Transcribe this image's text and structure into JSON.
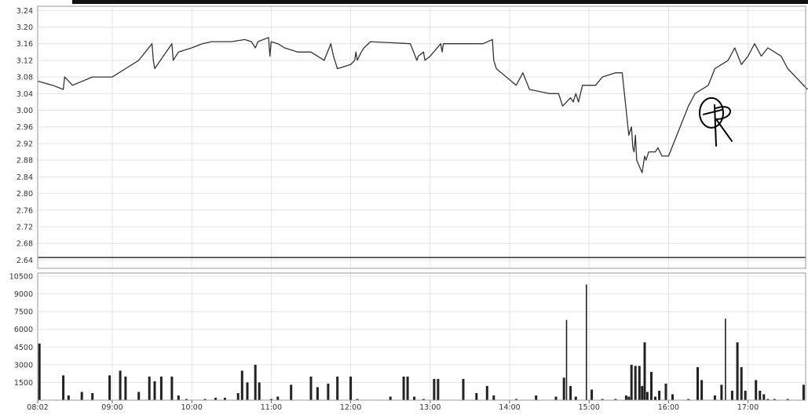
{
  "chart_data": [
    {
      "type": "line",
      "panel": "price",
      "y_ticks": [
        3.24,
        3.2,
        3.16,
        3.12,
        3.08,
        3.04,
        3.0,
        2.96,
        2.92,
        2.88,
        2.84,
        2.8,
        2.76,
        2.72,
        2.68,
        2.64
      ],
      "ylim": [
        2.62,
        3.25
      ],
      "grid": true,
      "reference_line": 2.646,
      "series": [
        {
          "x": [
            "08:02",
            "08:15",
            "08:23",
            "08:24",
            "08:30",
            "08:45",
            "09:00",
            "09:10",
            "09:20",
            "09:30",
            "09:31",
            "09:32",
            "09:45",
            "09:46",
            "09:50",
            "10:00",
            "10:08",
            "10:15",
            "10:30",
            "10:40",
            "10:45",
            "10:48",
            "10:50",
            "10:58",
            "10:59",
            "11:00",
            "11:05",
            "11:10",
            "11:20",
            "11:30",
            "11:35",
            "11:40",
            "11:45",
            "11:47",
            "11:50",
            "12:00",
            "12:03",
            "12:04",
            "12:05",
            "12:08",
            "12:10",
            "12:15",
            "12:45",
            "12:50",
            "12:51",
            "12:55",
            "12:56",
            "13:00",
            "13:08",
            "13:09",
            "13:10",
            "13:20",
            "13:40",
            "13:47",
            "13:48",
            "13:50",
            "14:05",
            "14:10",
            "14:15",
            "14:30",
            "14:37",
            "14:40",
            "14:46",
            "14:48",
            "14:50",
            "14:52",
            "14:55",
            "15:00",
            "15:02",
            "15:05",
            "15:10",
            "15:20",
            "15:25",
            "15:30",
            "15:32",
            "15:33",
            "15:34",
            "15:35",
            "15:36",
            "15:40",
            "15:42",
            "15:43",
            "15:45",
            "15:50",
            "15:52",
            "15:55",
            "16:00",
            "16:05",
            "16:10",
            "16:15",
            "16:20",
            "16:30",
            "16:35",
            "16:40",
            "16:45",
            "16:50",
            "16:55",
            "17:00",
            "17:05",
            "17:10",
            "17:15",
            "17:25",
            "17:30",
            "17:45"
          ],
          "y": [
            3.07,
            3.06,
            3.05,
            3.08,
            3.06,
            3.08,
            3.08,
            3.1,
            3.12,
            3.16,
            3.12,
            3.1,
            3.16,
            3.12,
            3.14,
            3.15,
            3.16,
            3.165,
            3.165,
            3.17,
            3.165,
            3.15,
            3.165,
            3.175,
            3.13,
            3.165,
            3.16,
            3.15,
            3.14,
            3.14,
            3.13,
            3.12,
            3.16,
            3.13,
            3.1,
            3.11,
            3.12,
            3.14,
            3.12,
            3.14,
            3.15,
            3.165,
            3.16,
            3.12,
            3.13,
            3.14,
            3.12,
            3.13,
            3.16,
            3.14,
            3.16,
            3.16,
            3.16,
            3.17,
            3.12,
            3.1,
            3.06,
            3.09,
            3.05,
            3.04,
            3.04,
            3.01,
            3.03,
            3.02,
            3.04,
            3.02,
            3.06,
            3.06,
            3.06,
            3.06,
            3.08,
            3.09,
            3.09,
            2.94,
            2.96,
            2.91,
            2.9,
            2.94,
            2.88,
            2.85,
            2.89,
            2.88,
            2.9,
            2.9,
            2.91,
            2.89,
            2.89,
            2.93,
            2.97,
            3.01,
            3.04,
            3.06,
            3.1,
            3.11,
            3.12,
            3.15,
            3.11,
            3.13,
            3.16,
            3.13,
            3.15,
            3.13,
            3.1,
            3.05
          ]
        }
      ]
    },
    {
      "type": "bar",
      "panel": "volume",
      "y_ticks": [
        10500,
        9000,
        7500,
        6000,
        4500,
        3000,
        1500
      ],
      "ylim": [
        0,
        10500
      ],
      "x_ticks": [
        "08:02",
        "09:00",
        "10:00",
        "11:00",
        "12:00",
        "13:00",
        "14:00",
        "15:00",
        "16:00",
        "17:00"
      ],
      "grid": true,
      "bars": [
        {
          "x": "08:05",
          "v": 4800
        },
        {
          "x": "08:23",
          "v": 2100
        },
        {
          "x": "08:27",
          "v": 400
        },
        {
          "x": "08:37",
          "v": 700
        },
        {
          "x": "08:45",
          "v": 600
        },
        {
          "x": "08:58",
          "v": 2100
        },
        {
          "x": "09:06",
          "v": 2500
        },
        {
          "x": "09:10",
          "v": 2000
        },
        {
          "x": "09:20",
          "v": 700
        },
        {
          "x": "09:28",
          "v": 2000
        },
        {
          "x": "09:32",
          "v": 1600
        },
        {
          "x": "09:37",
          "v": 2000
        },
        {
          "x": "09:45",
          "v": 2000
        },
        {
          "x": "09:50",
          "v": 400
        },
        {
          "x": "09:56",
          "v": 100
        },
        {
          "x": "10:10",
          "v": 100
        },
        {
          "x": "10:18",
          "v": 200
        },
        {
          "x": "10:25",
          "v": 200
        },
        {
          "x": "10:35",
          "v": 600
        },
        {
          "x": "10:38",
          "v": 2500
        },
        {
          "x": "10:42",
          "v": 1500
        },
        {
          "x": "10:48",
          "v": 3000
        },
        {
          "x": "10:51",
          "v": 1500
        },
        {
          "x": "11:00",
          "v": 100
        },
        {
          "x": "11:05",
          "v": 300
        },
        {
          "x": "11:15",
          "v": 1300
        },
        {
          "x": "11:30",
          "v": 2000
        },
        {
          "x": "11:35",
          "v": 1100
        },
        {
          "x": "11:43",
          "v": 1400
        },
        {
          "x": "11:50",
          "v": 2000
        },
        {
          "x": "12:00",
          "v": 2000
        },
        {
          "x": "12:05",
          "v": 100
        },
        {
          "x": "12:30",
          "v": 300
        },
        {
          "x": "12:40",
          "v": 2000
        },
        {
          "x": "12:43",
          "v": 2000
        },
        {
          "x": "12:48",
          "v": 300
        },
        {
          "x": "12:55",
          "v": 100
        },
        {
          "x": "13:03",
          "v": 1800
        },
        {
          "x": "13:06",
          "v": 1800
        },
        {
          "x": "13:25",
          "v": 1800
        },
        {
          "x": "13:35",
          "v": 600
        },
        {
          "x": "13:43",
          "v": 1200
        },
        {
          "x": "13:48",
          "v": 400
        },
        {
          "x": "14:05",
          "v": 100
        },
        {
          "x": "14:20",
          "v": 400
        },
        {
          "x": "14:35",
          "v": 300
        },
        {
          "x": "14:41",
          "v": 1900
        },
        {
          "x": "14:43",
          "v": 6800
        },
        {
          "x": "14:46",
          "v": 1200
        },
        {
          "x": "14:50",
          "v": 300
        },
        {
          "x": "14:58",
          "v": 9800
        },
        {
          "x": "15:02",
          "v": 900
        },
        {
          "x": "15:10",
          "v": 100
        },
        {
          "x": "15:20",
          "v": 100
        },
        {
          "x": "15:28",
          "v": 400
        },
        {
          "x": "15:30",
          "v": 300
        },
        {
          "x": "15:32",
          "v": 3000
        },
        {
          "x": "15:35",
          "v": 2900
        },
        {
          "x": "15:38",
          "v": 2900
        },
        {
          "x": "15:40",
          "v": 1200
        },
        {
          "x": "15:42",
          "v": 4900
        },
        {
          "x": "15:44",
          "v": 700
        },
        {
          "x": "15:47",
          "v": 2400
        },
        {
          "x": "15:50",
          "v": 300
        },
        {
          "x": "15:53",
          "v": 800
        },
        {
          "x": "15:58",
          "v": 1400
        },
        {
          "x": "16:03",
          "v": 500
        },
        {
          "x": "16:15",
          "v": 100
        },
        {
          "x": "16:22",
          "v": 2800
        },
        {
          "x": "16:25",
          "v": 1700
        },
        {
          "x": "16:35",
          "v": 400
        },
        {
          "x": "16:40",
          "v": 1300
        },
        {
          "x": "16:43",
          "v": 6900
        },
        {
          "x": "16:48",
          "v": 800
        },
        {
          "x": "16:52",
          "v": 4900
        },
        {
          "x": "16:55",
          "v": 2800
        },
        {
          "x": "16:58",
          "v": 800
        },
        {
          "x": "17:06",
          "v": 1700
        },
        {
          "x": "17:09",
          "v": 800
        },
        {
          "x": "17:12",
          "v": 500
        },
        {
          "x": "17:15",
          "v": 100
        },
        {
          "x": "17:20",
          "v": 100
        },
        {
          "x": "17:30",
          "v": 100
        },
        {
          "x": "17:42",
          "v": 1300
        }
      ]
    }
  ],
  "colors": {
    "line": "#333333",
    "bars": "#222222",
    "reference": "#222222",
    "grid": "#e3e3e3",
    "frame": "#9a9a9a",
    "header_bar": "#111111",
    "annotation": "#000000"
  },
  "annotation": {
    "type": "handwritten-circled-R",
    "at_x": "16:30",
    "at_y": 2.99
  }
}
